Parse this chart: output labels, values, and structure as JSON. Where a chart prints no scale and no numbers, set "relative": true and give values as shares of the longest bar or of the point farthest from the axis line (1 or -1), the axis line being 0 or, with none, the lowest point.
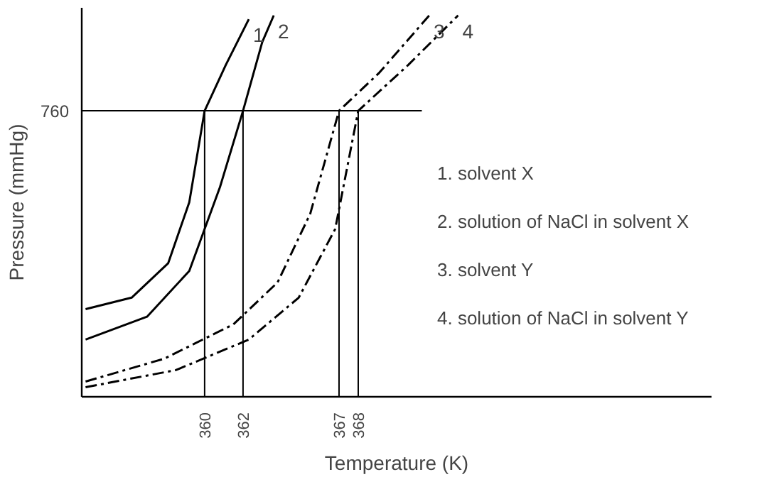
{
  "chart_data": {
    "type": "line",
    "relative": true,
    "xlabel": "Temperature (K)",
    "ylabel": "Pressure (mmHg)",
    "xlim": [
      353.6,
      386.4
    ],
    "xticks": [
      360,
      362,
      367,
      368
    ],
    "ref_lines": [
      {
        "axis": "y",
        "value": 0.75,
        "label": null
      },
      {
        "axis": "x",
        "value": 360,
        "label": null
      },
      {
        "axis": "x",
        "value": 362,
        "label": null
      },
      {
        "axis": "x",
        "value": 367,
        "label": null
      },
      {
        "axis": "x",
        "value": 368,
        "label": null
      }
    ],
    "series": [
      {
        "name": "1",
        "color": "#000000",
        "line_style": "solid",
        "x": [
          353.8,
          356.2,
          358.1,
          359.2,
          360,
          361.1,
          362.3
        ],
        "values": [
          0.23,
          0.26,
          0.35,
          0.51,
          0.75,
          0.87,
          0.99
        ]
      },
      {
        "name": "2",
        "color": "#000000",
        "line_style": "solid",
        "x": [
          353.8,
          357.0,
          359.2,
          360.8,
          362,
          363.0,
          363.6
        ],
        "values": [
          0.15,
          0.21,
          0.33,
          0.55,
          0.75,
          0.93,
          1.0
        ]
      },
      {
        "name": "3",
        "color": "#000000",
        "line_style": "dashed",
        "x": [
          353.8,
          357.9,
          361.5,
          363.8,
          365.5,
          367,
          369.1,
          371.7
        ],
        "values": [
          0.04,
          0.1,
          0.19,
          0.3,
          0.48,
          0.75,
          0.85,
          1.0
        ]
      },
      {
        "name": "4",
        "color": "#000000",
        "line_style": "dashed",
        "x": [
          353.8,
          358.5,
          362.3,
          364.9,
          366.8,
          368,
          370.6,
          373.2
        ],
        "values": [
          0.025,
          0.07,
          0.15,
          0.26,
          0.44,
          0.75,
          0.87,
          1.0
        ]
      }
    ],
    "annotations": [
      "760",
      "1. solvent X",
      "2. solution of NaCl in solvent X",
      "3. solvent Y",
      "4. solution of NaCl in solvent Y"
    ],
    "grid": false
  }
}
